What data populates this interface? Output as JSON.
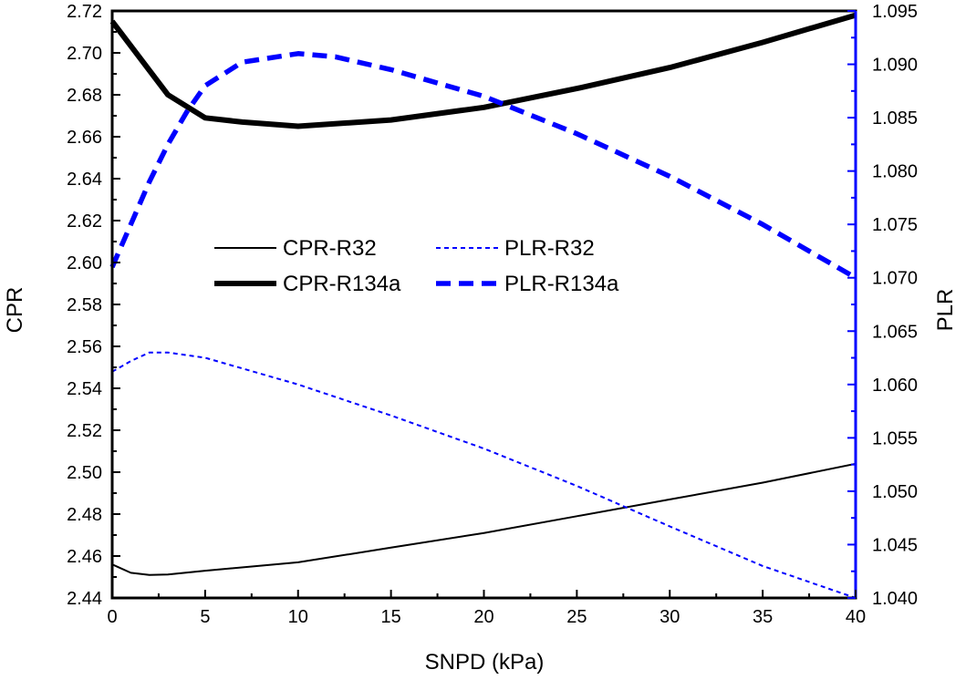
{
  "chart_data": {
    "type": "line",
    "xlabel": "SNPD (kPa)",
    "ylabel_left": "CPR",
    "ylabel_right": "PLR",
    "xlim": [
      0,
      40
    ],
    "ylim_left": [
      2.44,
      2.72
    ],
    "ylim_right": [
      1.04,
      1.095
    ],
    "x_ticks": [
      0,
      5,
      10,
      15,
      20,
      25,
      30,
      35,
      40
    ],
    "y_left_ticks": [
      "2.44",
      "2.46",
      "2.48",
      "2.50",
      "2.52",
      "2.54",
      "2.56",
      "2.58",
      "2.60",
      "2.62",
      "2.64",
      "2.66",
      "2.68",
      "2.70",
      "2.72"
    ],
    "y_right_ticks": [
      "1.040",
      "1.045",
      "1.050",
      "1.055",
      "1.060",
      "1.065",
      "1.070",
      "1.075",
      "1.080",
      "1.085",
      "1.090",
      "1.095"
    ],
    "grid": false,
    "legend_position": "center-left",
    "colors": {
      "cpr": "#000000",
      "plr": "#0000ff",
      "right_axis": "#0000ff"
    },
    "series": [
      {
        "name": "CPR-R32",
        "axis": "left",
        "style": "solid-thin",
        "color": "#000000",
        "x": [
          0,
          1,
          2,
          3,
          5,
          10,
          15,
          20,
          25,
          30,
          35,
          40
        ],
        "y": [
          2.456,
          2.452,
          2.451,
          2.4512,
          2.453,
          2.457,
          2.464,
          2.471,
          2.479,
          2.487,
          2.495,
          2.504
        ]
      },
      {
        "name": "CPR-R134a",
        "axis": "left",
        "style": "solid-thick",
        "color": "#000000",
        "x": [
          0,
          3,
          5,
          7,
          10,
          15,
          20,
          25,
          30,
          35,
          40
        ],
        "y": [
          2.715,
          2.68,
          2.669,
          2.667,
          2.665,
          2.668,
          2.674,
          2.683,
          2.693,
          2.705,
          2.718
        ]
      },
      {
        "name": "PLR-R32",
        "axis": "right",
        "style": "dashed-thin",
        "color": "#0000ff",
        "x": [
          0,
          1,
          2,
          3,
          5,
          10,
          15,
          20,
          25,
          30,
          35,
          40
        ],
        "y": [
          1.0612,
          1.0622,
          1.063,
          1.063,
          1.0625,
          1.06,
          1.0571,
          1.054,
          1.0505,
          1.0467,
          1.043,
          1.04
        ]
      },
      {
        "name": "PLR-R134a",
        "axis": "right",
        "style": "dashed-thick",
        "color": "#0000ff",
        "x": [
          0,
          1,
          2,
          3,
          4,
          5,
          7,
          10,
          12,
          15,
          20,
          25,
          30,
          35,
          40
        ],
        "y": [
          1.071,
          1.075,
          1.079,
          1.0825,
          1.0855,
          1.088,
          1.0902,
          1.091,
          1.0907,
          1.0895,
          1.087,
          1.0835,
          1.0795,
          1.075,
          1.07
        ]
      }
    ]
  }
}
